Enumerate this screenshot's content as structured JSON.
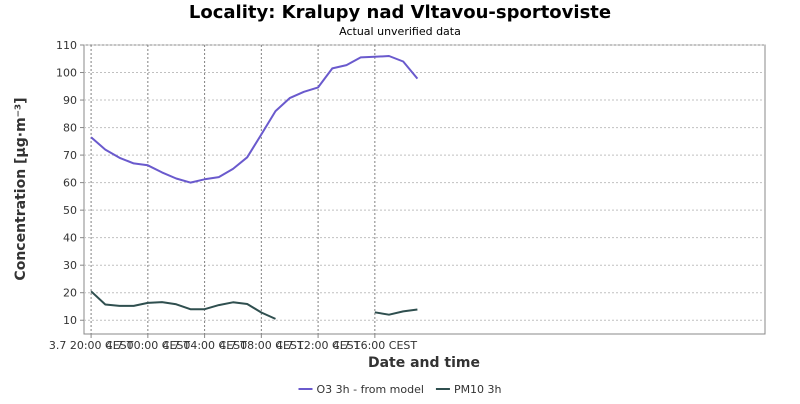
{
  "chart_data": {
    "type": "line",
    "title": "Locality: Kralupy nad Vltavou-sportoviste",
    "subtitle": "Actual unverified data",
    "xlabel": "Date and time",
    "ylabel": "Concentration [µg·m⁻³]",
    "ylim": [
      5,
      110
    ],
    "yticks": [
      10,
      20,
      30,
      40,
      50,
      60,
      70,
      80,
      90,
      100,
      110
    ],
    "xlim": [
      "3.7 19:30",
      "5.7 19:30"
    ],
    "xticks": [
      "3.7 20:00 CEST",
      "4.7 00:00 CEST",
      "4.7 04:00 CEST",
      "4.7 08:00 CEST",
      "4.7 12:00 CEST",
      "4.7 16:00 CEST"
    ],
    "grid": true,
    "legend_position": "bottom",
    "x": [
      "3.7 20:00",
      "3.7 21:00",
      "3.7 22:00",
      "3.7 23:00",
      "4.7 00:00",
      "4.7 01:00",
      "4.7 02:00",
      "4.7 03:00",
      "4.7 04:00",
      "4.7 05:00",
      "4.7 06:00",
      "4.7 07:00",
      "4.7 08:00",
      "4.7 09:00",
      "4.7 10:00",
      "4.7 11:00",
      "4.7 12:00",
      "4.7 13:00",
      "4.7 14:00",
      "4.7 15:00",
      "4.7 16:00",
      "4.7 17:00",
      "4.7 18:00",
      "4.7 19:00"
    ],
    "series": [
      {
        "name": "O3 3h - from model",
        "color": "#6a5acd",
        "values": [
          76.5,
          72,
          69,
          67,
          66.3,
          63.7,
          61.5,
          60,
          61.2,
          62,
          65,
          69.2,
          77.5,
          86,
          90.7,
          93,
          94.6,
          101.5,
          102.7,
          105.5,
          105.7,
          106,
          104,
          97.8
        ]
      },
      {
        "name": "PM10 3h",
        "color": "#2f4f4f",
        "values": [
          20.5,
          15.7,
          15.2,
          15.2,
          16.3,
          16.6,
          15.8,
          14,
          14,
          15.5,
          16.5,
          15.9,
          12.8,
          10.5,
          null,
          null,
          null,
          null,
          null,
          null,
          12.9,
          12,
          13.2,
          13.9
        ]
      }
    ]
  }
}
